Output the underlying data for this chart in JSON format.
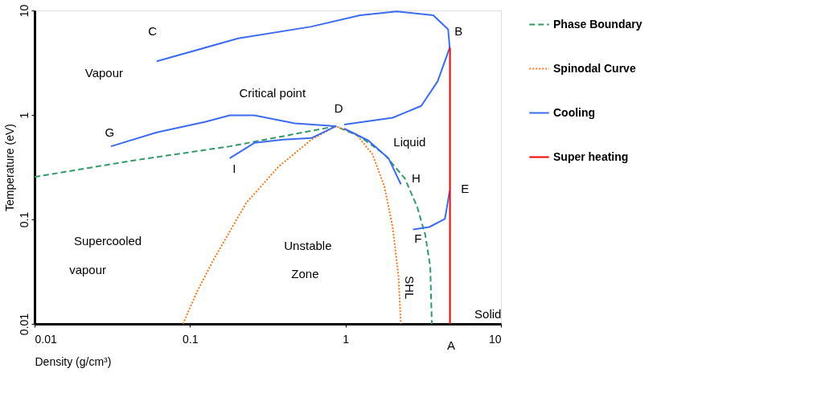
{
  "chart_data": {
    "type": "line",
    "xlabel": "Density (g/cm³)",
    "ylabel": "Temperature  (eV)",
    "log": "xy",
    "xlim": [
      0.01,
      10
    ],
    "ylim": [
      0.01,
      10
    ],
    "xticks": [
      0.01,
      0.1,
      1,
      10
    ],
    "yticks": [
      0.01,
      0.1,
      1,
      10
    ],
    "grid": false,
    "legend": "right",
    "marker": "none",
    "series": [
      {
        "name": "Phase Boundary",
        "color": "#339966",
        "line_style": "dashed",
        "x": [
          0.01,
          0.042,
          0.18,
          0.865,
          1.24,
          1.78,
          2.41,
          2.89,
          3.26,
          3.51,
          3.59
        ],
        "values": [
          0.255,
          0.364,
          0.5,
          0.78,
          0.62,
          0.42,
          0.246,
          0.132,
          0.071,
          0.035,
          0.01
        ]
      },
      {
        "name": "Spinodal Curve",
        "color": "#f07820",
        "line_style": "dotted",
        "x": [
          0.09,
          0.111,
          0.142,
          0.23,
          0.372,
          0.603,
          0.865,
          1.17,
          1.49,
          1.78,
          2.01,
          2.19,
          2.27
        ],
        "values": [
          0.01,
          0.0204,
          0.0415,
          0.144,
          0.321,
          0.58,
          0.78,
          0.656,
          0.42,
          0.206,
          0.0845,
          0.029,
          0.01
        ]
      },
      {
        "name": "Cooling",
        "color": "#3b6cf0",
        "line_style": "solid",
        "x": [
          4.68,
          4.57,
          3.67,
          2.14,
          1.24,
          0.603,
          0.204,
          0.061,
          null,
          4.68,
          3.91,
          3.07,
          2.01,
          0.98,
          null,
          0.865,
          0.473,
          0.259,
          0.18,
          0.126,
          0.061,
          0.031,
          null,
          0.865,
          0.603,
          0.395,
          0.259,
          0.18,
          null,
          0.98,
          1.4,
          1.89,
          2.27,
          null,
          4.68,
          4.36,
          3.46,
          2.72
        ],
        "values": [
          4.4,
          6.6,
          9.0,
          9.8,
          9.0,
          7.0,
          5.4,
          3.26,
          null,
          4.4,
          2.09,
          1.22,
          0.94,
          0.81,
          null,
          0.78,
          0.83,
          0.99,
          0.99,
          0.86,
          0.68,
          0.5,
          null,
          0.78,
          0.6,
          0.58,
          0.54,
          0.385,
          null,
          0.74,
          0.57,
          0.385,
          0.217,
          null,
          0.188,
          0.101,
          0.0845,
          0.08
        ]
      },
      {
        "name": "Super heating",
        "color": "#ff0000",
        "line_style": "solid",
        "x": [
          4.7,
          4.7
        ],
        "values": [
          0.01,
          4.4
        ]
      }
    ],
    "annotations": [
      "C",
      "B",
      "Vapour",
      "Critical point",
      "D",
      "G",
      "Liquid",
      "I",
      "H",
      "E",
      "Supercooled",
      "vapour",
      "Unstable",
      "Zone",
      "F",
      "SHL",
      "Solid",
      "A"
    ]
  }
}
